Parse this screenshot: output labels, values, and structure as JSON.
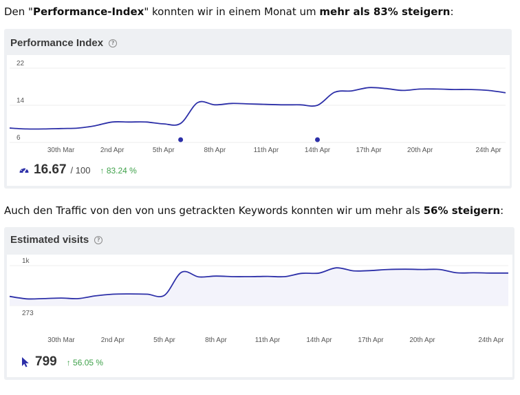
{
  "intro1": {
    "p1": "Den \"",
    "b1": "Performance-Index",
    "p2": "\" konnten wir in einem Monat um ",
    "b2": "mehr als 83% steigern",
    "p3": ":"
  },
  "intro2": {
    "p1": "Auch den Traffic von den von uns getrackten Keywords konnten wir um mehr als ",
    "b1": "56% steigern",
    "p2": ":"
  },
  "performance": {
    "title": "Performance Index",
    "help_icon": "question-circle-icon",
    "metric_icon": "speedometer-icon",
    "value": "16.67",
    "max": "/ 100",
    "change": "83.24 %",
    "change_arrow": "↑",
    "accent_color": "#2c2fa8",
    "y_ticks": [
      "22",
      "14",
      "6"
    ],
    "x_ticks": [
      "30th Mar",
      "2nd Apr",
      "5th Apr",
      "8th Apr",
      "11th Apr",
      "14th Apr",
      "17th Apr",
      "20th Apr",
      "24th Apr"
    ]
  },
  "visits": {
    "title": "Estimated visits",
    "help_icon": "question-circle-icon",
    "metric_icon": "cursor-icon",
    "value": "799",
    "change": "56.05 %",
    "change_arrow": "↑",
    "accent_color": "#2c2fa8",
    "y_ticks": [
      "1k",
      "273"
    ],
    "x_ticks": [
      "30th Mar",
      "2nd Apr",
      "5th Apr",
      "8th Apr",
      "11th Apr",
      "14th Apr",
      "17th Apr",
      "20th Apr",
      "24th Apr"
    ]
  },
  "chart_data": [
    {
      "type": "line",
      "x": [
        "27th Mar",
        "28th Mar",
        "29th Mar",
        "30th Mar",
        "31st Mar",
        "1st Apr",
        "2nd Apr",
        "3rd Apr",
        "4th Apr",
        "5th Apr",
        "6th Apr",
        "7th Apr",
        "8th Apr",
        "9th Apr",
        "10th Apr",
        "11th Apr",
        "12th Apr",
        "13th Apr",
        "14th Apr",
        "15th Apr",
        "16th Apr",
        "17th Apr",
        "18th Apr",
        "19th Apr",
        "20th Apr",
        "21st Apr",
        "22nd Apr",
        "23rd Apr",
        "24th Apr",
        "25th Apr"
      ],
      "series": [
        {
          "values": [
            9.1,
            8.9,
            8.9,
            9.0,
            9.1,
            9.6,
            10.4,
            10.4,
            10.4,
            10.0,
            10.1,
            14.6,
            14.1,
            14.4,
            14.3,
            14.2,
            14.1,
            14.1,
            14.0,
            16.8,
            17.1,
            17.8,
            17.6,
            17.2,
            17.5,
            17.5,
            17.4,
            17.4,
            17.2,
            16.7
          ]
        }
      ],
      "ylim": [
        6,
        22
      ],
      "y_ticks": [
        6,
        14,
        22
      ],
      "markers": [
        {
          "x": "6th Apr"
        },
        {
          "x": "14th Apr"
        }
      ],
      "title": "Performance Index",
      "grid": true
    },
    {
      "type": "area",
      "x": [
        "27th Mar",
        "28th Mar",
        "29th Mar",
        "30th Mar",
        "31st Mar",
        "1st Apr",
        "2nd Apr",
        "3rd Apr",
        "4th Apr",
        "5th Apr",
        "6th Apr",
        "7th Apr",
        "8th Apr",
        "9th Apr",
        "10th Apr",
        "11th Apr",
        "12th Apr",
        "13th Apr",
        "14th Apr",
        "15th Apr",
        "16th Apr",
        "17th Apr",
        "18th Apr",
        "19th Apr",
        "20th Apr",
        "21st Apr",
        "22nd Apr",
        "23rd Apr",
        "24th Apr",
        "25th Apr"
      ],
      "series": [
        {
          "values": [
            440,
            395,
            400,
            410,
            400,
            450,
            480,
            485,
            480,
            460,
            880,
            795,
            810,
            800,
            800,
            805,
            800,
            860,
            865,
            960,
            905,
            910,
            930,
            935,
            930,
            930,
            870,
            870,
            865,
            865
          ]
        }
      ],
      "ylim": [
        273,
        1000
      ],
      "y_ticks": [
        273,
        1000
      ],
      "title": "Estimated visits",
      "grid": true
    }
  ]
}
